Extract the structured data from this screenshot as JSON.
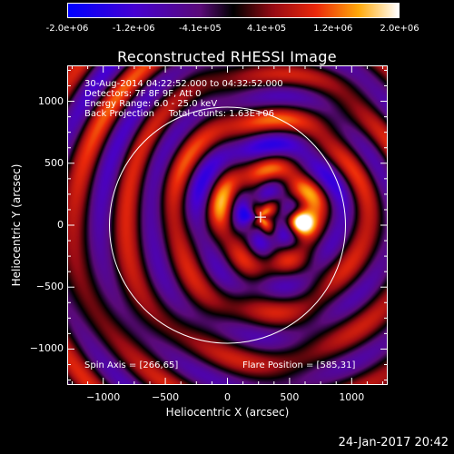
{
  "colorbar": {
    "tick_labels": [
      "-2.0e+06",
      "-1.2e+06",
      "-4.1e+05",
      "4.1e+05",
      "1.2e+06",
      "2.0e+06"
    ],
    "range": [
      -2000000,
      2000000
    ]
  },
  "title": "Reconstructed RHESSI Image",
  "info": {
    "time": "30-Aug-2014 04:22:52.000 to 04:32:52.000",
    "detectors": "Detectors: 7F 8F 9F, Att 0",
    "energy": "Energy Range: 6.0 - 25.0 keV",
    "method": "Back Projection     Total counts: 1.63E+06",
    "spin_axis": "Spin Axis = [266,65]",
    "flare_position": "Flare Position = [585,31]"
  },
  "footer": {
    "date": "24-Jan-2017 20:42"
  },
  "chart_data": {
    "type": "heatmap",
    "title": "Reconstructed RHESSI Image",
    "xlabel": "Heliocentric X (arcsec)",
    "ylabel": "Heliocentric Y (arcsec)",
    "xlim": [
      -1290,
      1290
    ],
    "ylim": [
      -1290,
      1290
    ],
    "x_ticks": [
      -1000,
      -500,
      0,
      500,
      1000
    ],
    "y_ticks": [
      -1000,
      -500,
      0,
      500,
      1000
    ],
    "colormap": "blue-purple-red-yellow-white",
    "solar_limb_radius": 950,
    "spin_axis": [
      266,
      65
    ],
    "flare_position": [
      585,
      31
    ],
    "peak_value": 2000000
  }
}
